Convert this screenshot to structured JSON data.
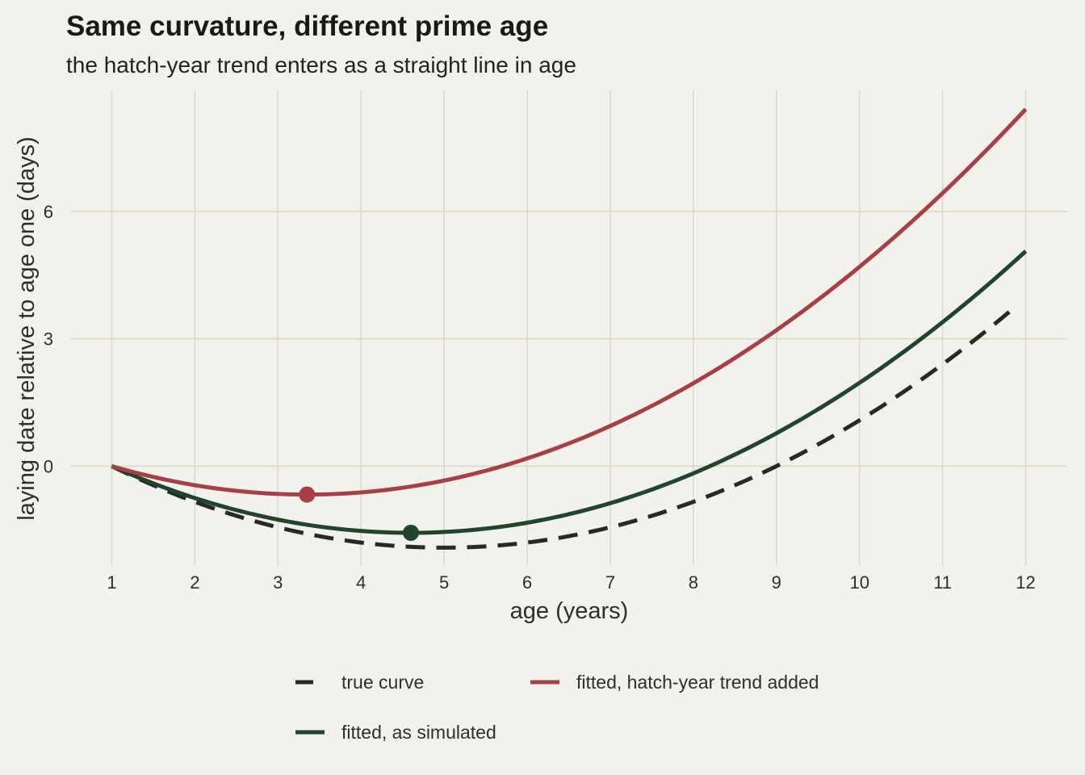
{
  "chart_data": {
    "type": "line",
    "title": "Same curvature, different prime age",
    "subtitle": "the hatch-year trend enters as a straight line in age",
    "xlabel": "age (years)",
    "ylabel": "laying date relative to age one (days)",
    "xlim": [
      0.5,
      12.5
    ],
    "ylim": [
      -2.35,
      8.85
    ],
    "x_ticks": [
      1,
      2,
      3,
      4,
      5,
      6,
      7,
      8,
      9,
      10,
      11,
      12
    ],
    "y_ticks": [
      0,
      3,
      6
    ],
    "grid": true,
    "legend_position": "bottom",
    "series": [
      {
        "name": "true curve",
        "key": "true",
        "color": "#252a27",
        "dashed": true,
        "shape": "quadratic",
        "vertex_x": 5.0,
        "vertex_y": -1.92,
        "x_start": 1,
        "x_end": 11.88
      },
      {
        "name": "fitted, as simulated",
        "key": "simulated",
        "color": "#1f4430",
        "dashed": false,
        "shape": "quadratic",
        "vertex_x": 4.6,
        "vertex_y": -1.57,
        "x_start": 1,
        "x_end": 12,
        "marker": {
          "x": 4.6,
          "y": -1.57
        }
      },
      {
        "name": "fitted, hatch-year trend added",
        "key": "hatch",
        "color": "#a54044",
        "dashed": false,
        "shape": "quadratic",
        "vertex_x": 3.35,
        "vertex_y": -0.67,
        "x_start": 1,
        "x_end": 12,
        "marker": {
          "x": 3.35,
          "y": -0.67
        }
      }
    ],
    "legend": [
      {
        "key": "true",
        "label": "true curve"
      },
      {
        "key": "hatch",
        "label": "fitted, hatch-year trend added"
      },
      {
        "key": "simulated",
        "label": "fitted, as simulated"
      }
    ]
  }
}
